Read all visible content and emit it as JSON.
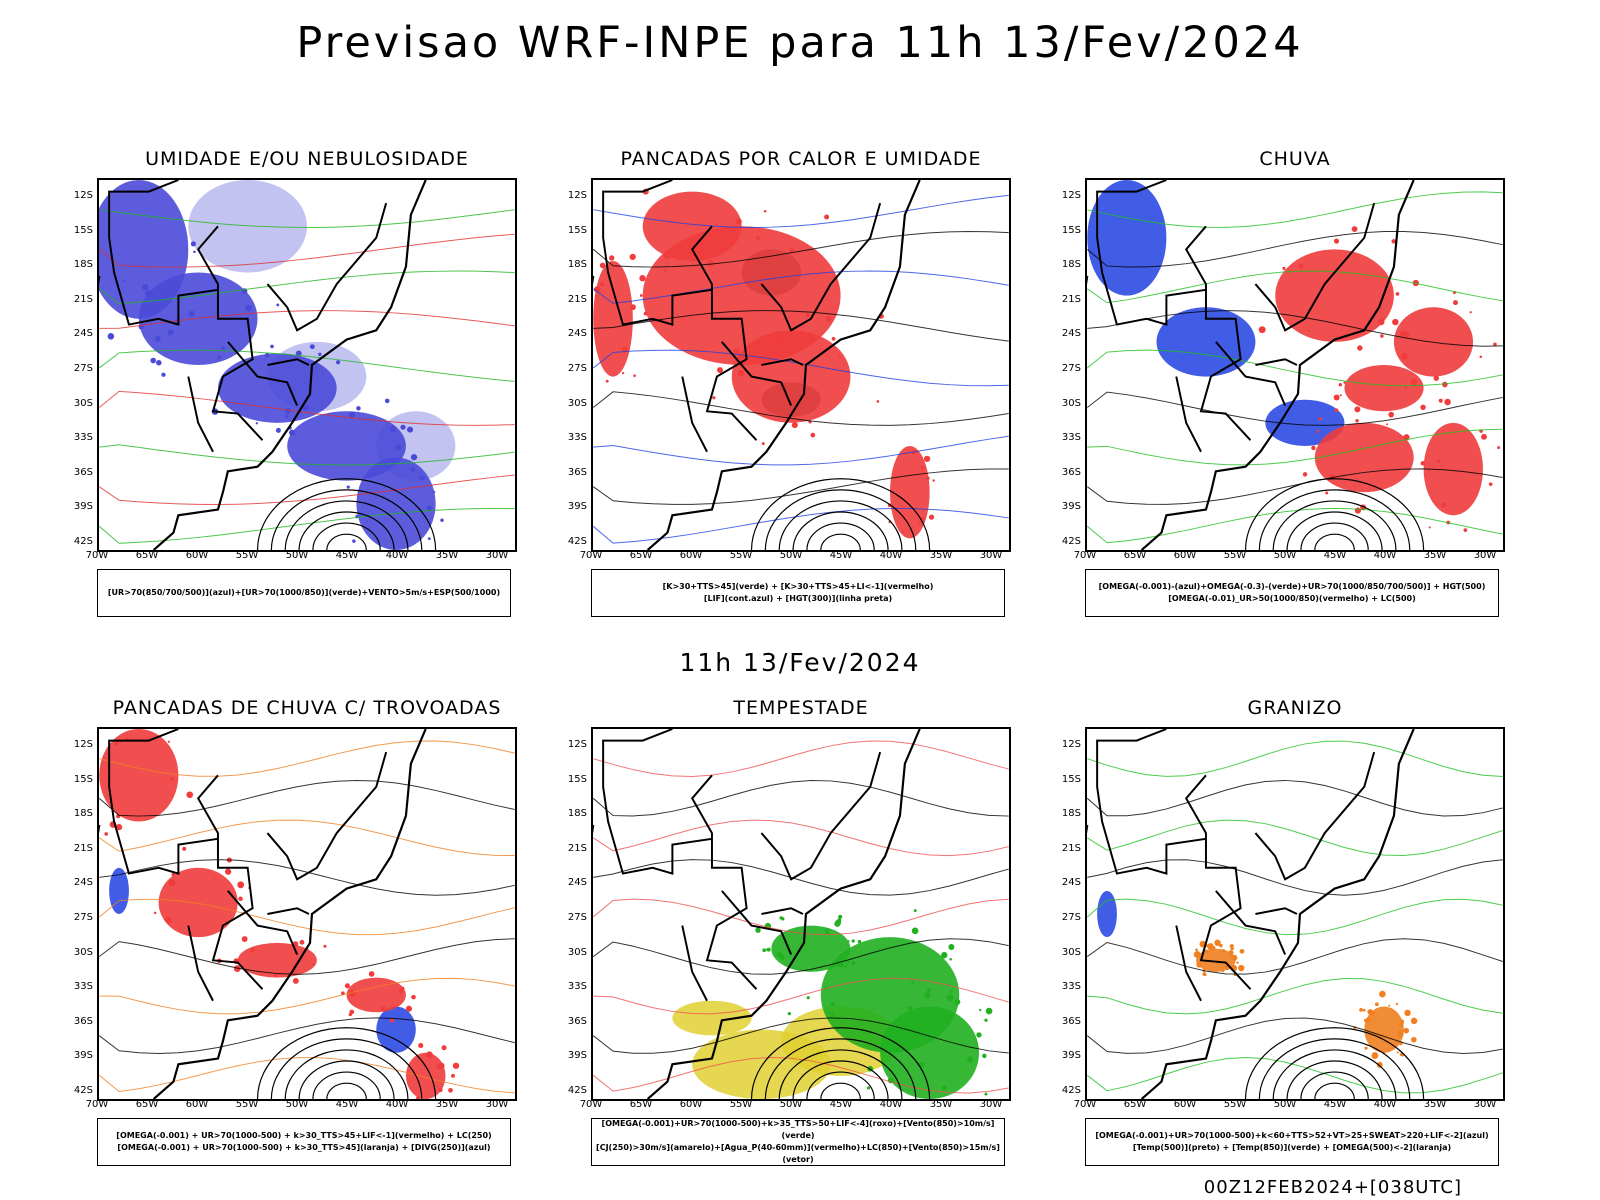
{
  "title": "Previsao WRF-INPE  para 11h 13/Fev/2024",
  "subtitle": "11h 13/Fev/2024",
  "footer": "00Z12FEB2024+[038UTC]",
  "lat_labels": [
    "12S",
    "15S",
    "18S",
    "21S",
    "24S",
    "27S",
    "30S",
    "33S",
    "36S",
    "39S",
    "42S"
  ],
  "lon_labels": [
    "70W",
    "65W",
    "60W",
    "55W",
    "50W",
    "45W",
    "40W",
    "35W",
    "30W"
  ],
  "panels": [
    {
      "title": "UMIDADE E/OU NEBULOSIDADE",
      "legend": [
        "[UR>70(850/700/500)](azul)+[UR>70(1000/850)](verde)+VENTO>5m/s+ESP(500/1000)"
      ],
      "colors": {
        "fill1": "#4a4ad8",
        "fill2": "#b8b8f0",
        "line1": "#1fb81f",
        "line2": "#e03030"
      }
    },
    {
      "title": "PANCADAS POR CALOR E UMIDADE",
      "legend": [
        "[K>30+TTS>45](verde) + [K>30+TTS>45+LI<-1](vermelho)",
        "[LIF](cont.azul) + [HGT(300)](linha preta)"
      ],
      "colors": {
        "fill1": "#f03c3c",
        "fill2": "#2a5a50",
        "line1": "#2040e0",
        "line2": "#000000"
      }
    },
    {
      "title": "CHUVA",
      "legend": [
        "[OMEGA(-0.001)-(azul)+OMEGA(-0.3)-(verde)+UR>70(1000/850/700/500)] + HGT(500)",
        "[OMEGA(-0.01)_UR>50(1000/850)(vermelho) + LC(500)"
      ],
      "colors": {
        "fill1": "#f03c3c",
        "fill2": "#2040e0",
        "line1": "#20c020",
        "line2": "#000000"
      }
    },
    {
      "title": "PANCADAS DE CHUVA C/ TROVOADAS",
      "legend": [
        "[OMEGA(-0.001) + UR>70(1000-500) + k>30_TTS>45+LIF<-1](vermelho) + LC(250)",
        "[OMEGA(-0.001) + UR>70(1000-500) + k>30_TTS>45](laranja) + [DIVG(250)](azul)"
      ],
      "colors": {
        "fill1": "#f03c3c",
        "fill2": "#2040e0",
        "line1": "#f08020",
        "line2": "#000000"
      }
    },
    {
      "title": "TEMPESTADE",
      "legend": [
        "[OMEGA(-0.001)+UR>70(1000-500)+k>35_TTS>50+LIF<-4](roxo)+[Vento(850)>10m/s](verde)",
        "[CJ(250)>30m/s](amarelo)+[Agua_P(40-60mm)](vermelho)+LC(850)+[Vento(850)>15m/s](vetor)"
      ],
      "colors": {
        "fill1": "#20b020",
        "fill2": "#e0d030",
        "line1": "#f05050",
        "line2": "#000000"
      }
    },
    {
      "title": "GRANIZO",
      "legend": [
        "[OMEGA(-0.001)+UR>70(1000-500)+k<60+TTS>52+VT>25+SWEAT>220+LIF<-2](azul)",
        "[Temp(500)](preto) + [Temp(850)](verde) + [OMEGA(500)<-2](laranja)"
      ],
      "colors": {
        "fill1": "#f08020",
        "fill2": "#2040e0",
        "line1": "#20c020",
        "line2": "#000000"
      }
    }
  ]
}
